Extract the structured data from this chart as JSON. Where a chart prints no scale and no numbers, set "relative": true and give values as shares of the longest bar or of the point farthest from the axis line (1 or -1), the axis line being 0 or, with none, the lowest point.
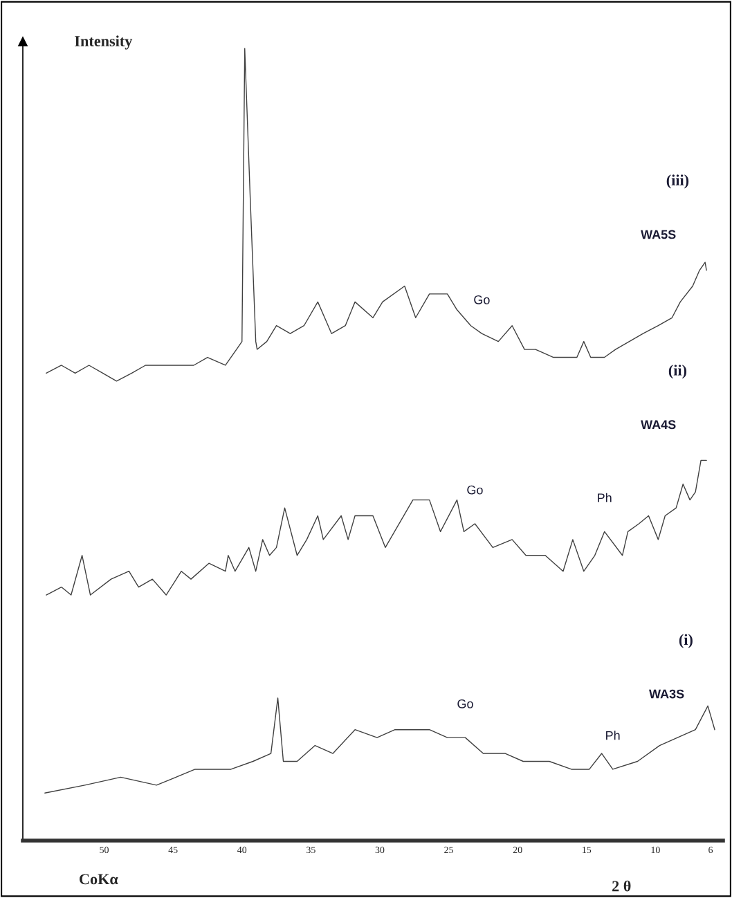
{
  "chart_data": {
    "type": "line",
    "relative": true,
    "xlabel": "2 θ",
    "ylabel": "Intensity",
    "xlim": [
      55.9,
      5.1
    ],
    "xticks": [
      50,
      45,
      40,
      35,
      30,
      25,
      20,
      15,
      10,
      6
    ],
    "grid": false,
    "legend": false,
    "marker": "none",
    "line_style": "solid",
    "series": [
      {
        "name": "(iii)\nWA5S",
        "color": "#404040",
        "x": [
          54.2,
          53.1,
          52.1,
          51.1,
          50.1,
          49.1,
          48.0,
          47.0,
          45.5,
          44.5,
          43.5,
          42.5,
          41.2,
          40.4,
          40.0,
          39.8,
          39.4,
          39.0,
          38.9,
          38.2,
          37.5,
          36.5,
          35.5,
          34.5,
          34.0,
          33.5,
          32.5,
          31.8,
          30.5,
          29.8,
          28.2,
          27.4,
          26.4,
          25.1,
          24.4,
          23.4,
          22.6,
          21.4,
          20.4,
          19.5,
          18.7,
          17.4,
          16.5,
          15.7,
          15.2,
          14.7,
          13.7,
          12.9,
          11.9,
          10.9,
          9.8,
          8.8,
          8.2,
          7.3,
          6.8,
          6.4,
          6.3
        ],
        "values": [
          0.59,
          0.6,
          0.59,
          0.6,
          0.59,
          0.58,
          0.59,
          0.6,
          0.6,
          0.6,
          0.6,
          0.61,
          0.6,
          0.62,
          0.63,
          1.0,
          0.81,
          0.63,
          0.62,
          0.63,
          0.65,
          0.64,
          0.65,
          0.68,
          0.66,
          0.64,
          0.65,
          0.68,
          0.66,
          0.68,
          0.7,
          0.66,
          0.69,
          0.69,
          0.67,
          0.65,
          0.64,
          0.63,
          0.65,
          0.62,
          0.62,
          0.61,
          0.61,
          0.61,
          0.63,
          0.61,
          0.61,
          0.62,
          0.63,
          0.64,
          0.65,
          0.66,
          0.68,
          0.7,
          0.72,
          0.73,
          0.72
        ]
      },
      {
        "name": "(ii)\nWA4S",
        "color": "#404040",
        "x": [
          54.2,
          53.1,
          52.4,
          51.6,
          51.0,
          49.5,
          48.2,
          47.5,
          46.5,
          45.5,
          44.4,
          43.7,
          42.4,
          41.2,
          41.0,
          40.5,
          39.5,
          39.0,
          38.5,
          38.0,
          37.5,
          36.9,
          36.0,
          35.3,
          34.5,
          34.1,
          32.8,
          32.3,
          31.8,
          30.5,
          29.6,
          27.6,
          26.4,
          25.6,
          24.4,
          23.9,
          23.1,
          21.8,
          20.4,
          19.4,
          18.0,
          16.7,
          16.0,
          15.2,
          14.4,
          13.7,
          12.4,
          12.0,
          11.2,
          10.5,
          9.8,
          9.3,
          8.5,
          8.0,
          7.5,
          7.1,
          6.7,
          6.3
        ],
        "values": [
          0.31,
          0.32,
          0.31,
          0.36,
          0.31,
          0.33,
          0.34,
          0.32,
          0.33,
          0.31,
          0.34,
          0.33,
          0.35,
          0.34,
          0.36,
          0.34,
          0.37,
          0.34,
          0.38,
          0.36,
          0.37,
          0.42,
          0.36,
          0.38,
          0.41,
          0.38,
          0.41,
          0.38,
          0.41,
          0.41,
          0.37,
          0.43,
          0.43,
          0.39,
          0.43,
          0.39,
          0.4,
          0.37,
          0.38,
          0.36,
          0.36,
          0.34,
          0.38,
          0.34,
          0.36,
          0.39,
          0.36,
          0.39,
          0.4,
          0.41,
          0.38,
          0.41,
          0.42,
          0.45,
          0.43,
          0.44,
          0.48,
          0.48
        ]
      },
      {
        "name": "(i)\nWA3S",
        "color": "#404040",
        "x": [
          54.3,
          51.4,
          48.8,
          46.2,
          43.4,
          40.8,
          39.2,
          37.9,
          37.4,
          37.0,
          36.0,
          34.7,
          33.4,
          31.8,
          30.2,
          28.9,
          26.4,
          25.1,
          23.8,
          22.5,
          20.9,
          19.6,
          17.7,
          16.1,
          14.8,
          13.9,
          13.1,
          11.3,
          9.7,
          8.4,
          7.1,
          6.2,
          5.7
        ],
        "values": [
          0.06,
          0.07,
          0.08,
          0.07,
          0.09,
          0.09,
          0.1,
          0.11,
          0.18,
          0.1,
          0.1,
          0.12,
          0.11,
          0.14,
          0.13,
          0.14,
          0.14,
          0.13,
          0.13,
          0.11,
          0.11,
          0.1,
          0.1,
          0.09,
          0.09,
          0.11,
          0.09,
          0.1,
          0.12,
          0.13,
          0.14,
          0.17,
          0.14
        ]
      }
    ],
    "annotations": [
      {
        "text": "Go",
        "x": 22.6,
        "y": 0.64
      },
      {
        "text": "Go",
        "x": 23.1,
        "y": 0.4
      },
      {
        "text": "Ph",
        "x": 13.7,
        "y": 0.39
      },
      {
        "text": "Go",
        "x": 23.8,
        "y": 0.13
      },
      {
        "text": "Ph",
        "x": 13.1,
        "y": 0.09
      },
      "CoKα"
    ]
  }
}
